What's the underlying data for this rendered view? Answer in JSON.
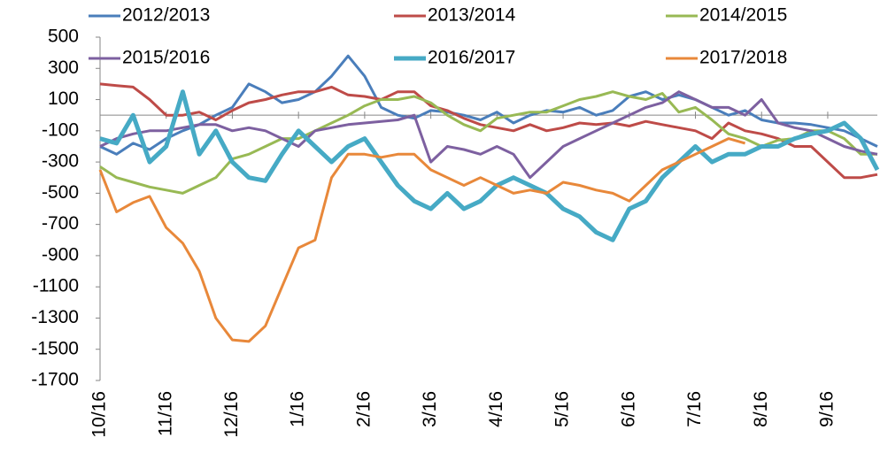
{
  "chart_data": {
    "type": "line",
    "categories": [
      "10/16",
      null,
      null,
      null,
      "11/16",
      null,
      null,
      null,
      "12/16",
      null,
      null,
      null,
      "1/16",
      null,
      null,
      null,
      "2/16",
      null,
      null,
      null,
      "3/16",
      null,
      null,
      null,
      "4/16",
      null,
      null,
      null,
      "5/16",
      null,
      null,
      null,
      "6/16",
      null,
      null,
      null,
      "7/16",
      null,
      null,
      null,
      "8/16",
      null,
      null,
      null,
      "9/16",
      null,
      null,
      null
    ],
    "ylim": [
      -1700,
      500
    ],
    "yticks": [
      -1700,
      -1500,
      -1300,
      -1100,
      -900,
      -700,
      -500,
      -300,
      -100,
      100,
      300,
      500
    ],
    "series": [
      {
        "name": "2012/2013",
        "color": "#4a7ebb",
        "width": 3,
        "values": [
          -200,
          -250,
          -180,
          -220,
          -150,
          -100,
          -60,
          0,
          50,
          200,
          150,
          80,
          100,
          150,
          250,
          380,
          250,
          50,
          0,
          -20,
          30,
          20,
          0,
          -30,
          20,
          -50,
          0,
          30,
          20,
          50,
          0,
          30,
          120,
          150,
          100,
          130,
          100,
          50,
          0,
          30,
          -30,
          -50,
          -50,
          -60,
          -80,
          -100,
          -150,
          -200
        ]
      },
      {
        "name": "2013/2014",
        "color": "#be4b48",
        "width": 3,
        "values": [
          200,
          190,
          180,
          100,
          0,
          0,
          20,
          -30,
          30,
          80,
          100,
          130,
          150,
          150,
          180,
          130,
          120,
          100,
          150,
          150,
          60,
          30,
          -20,
          -60,
          -80,
          -100,
          -60,
          -100,
          -80,
          -50,
          -60,
          -50,
          -70,
          -40,
          -60,
          -80,
          -100,
          -150,
          -50,
          -100,
          -120,
          -150,
          -200,
          -200,
          -300,
          -400,
          -400,
          -380
        ]
      },
      {
        "name": "2014/2015",
        "color": "#98b954",
        "width": 3,
        "values": [
          -330,
          -400,
          -430,
          -460,
          -480,
          -500,
          -450,
          -400,
          -280,
          -250,
          -200,
          -150,
          -150,
          -100,
          -50,
          0,
          60,
          100,
          100,
          120,
          80,
          0,
          -60,
          -100,
          -20,
          0,
          20,
          20,
          60,
          100,
          120,
          150,
          120,
          100,
          140,
          20,
          50,
          -30,
          -120,
          -150,
          -200,
          -160,
          -150,
          -100,
          -100,
          -150,
          -250,
          -250
        ]
      },
      {
        "name": "2015/2016",
        "color": "#7d60a0",
        "width": 3,
        "values": [
          -200,
          -150,
          -120,
          -100,
          -100,
          -80,
          -60,
          -60,
          -100,
          -80,
          -100,
          -150,
          -200,
          -100,
          -80,
          -60,
          -50,
          -40,
          -30,
          0,
          -300,
          -200,
          -220,
          -250,
          -200,
          -250,
          -400,
          -300,
          -200,
          -150,
          -100,
          -50,
          0,
          50,
          80,
          150,
          100,
          50,
          50,
          0,
          100,
          -50,
          -80,
          -100,
          -150,
          -200,
          -230,
          -250
        ]
      },
      {
        "name": "2016/2017",
        "color": "#46aac5",
        "width": 5,
        "values": [
          -150,
          -180,
          0,
          -300,
          -200,
          150,
          -250,
          -100,
          -300,
          -400,
          -420,
          -250,
          -100,
          -200,
          -300,
          -200,
          -150,
          -300,
          -450,
          -550,
          -600,
          -500,
          -600,
          -550,
          -450,
          -400,
          -450,
          -500,
          -600,
          -650,
          -750,
          -800,
          -600,
          -550,
          -400,
          -300,
          -200,
          -300,
          -250,
          -250,
          -200,
          -200,
          -150,
          -120,
          -100,
          -50,
          -150,
          -350
        ]
      },
      {
        "name": "2017/2018",
        "color": "#e8883a",
        "width": 3,
        "values": [
          -350,
          -620,
          -560,
          -520,
          -720,
          -820,
          -1000,
          -1300,
          -1440,
          -1450,
          -1350,
          -1100,
          -850,
          -800,
          -400,
          -250,
          -250,
          -270,
          -250,
          -250,
          -350,
          -400,
          -450,
          -400,
          -450,
          -500,
          -480,
          -500,
          -430,
          -450,
          -480,
          -500,
          -550,
          -450,
          -350,
          -300,
          -250,
          -200,
          -150,
          -180,
          null,
          null,
          null,
          null,
          null,
          null,
          null,
          null
        ]
      }
    ]
  }
}
